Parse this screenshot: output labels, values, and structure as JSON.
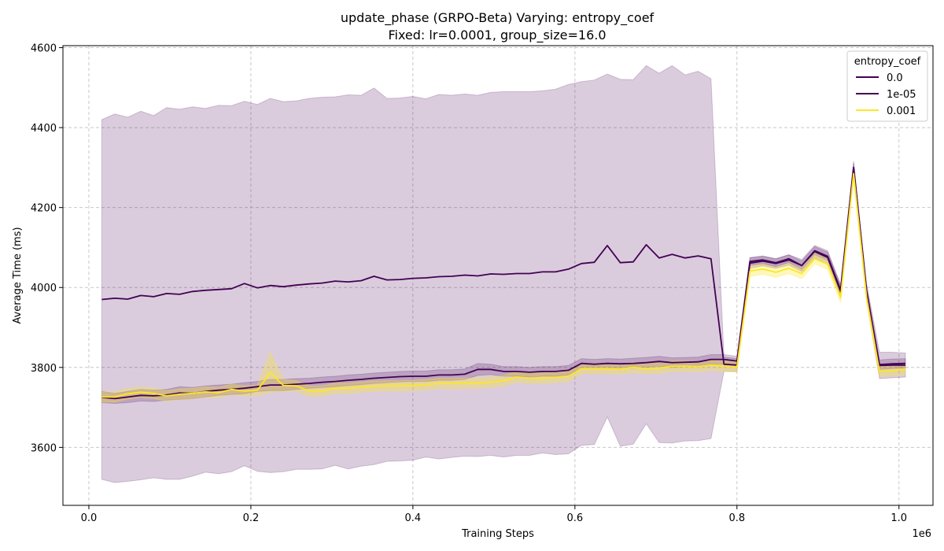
{
  "chart_data": {
    "type": "line",
    "title_line1": "update_phase (GRPO-Beta) Varying: entropy_coef",
    "title_line2": "Fixed: lr=0.0001, group_size=16.0",
    "xlabel": "Training Steps",
    "ylabel": "Average Time (ms)",
    "x_offset_label": "1e6",
    "xlim": [
      -0.032,
      1.042
    ],
    "ylim": [
      3455,
      4605
    ],
    "xticks": [
      0.0,
      0.2,
      0.4,
      0.6,
      0.8,
      1.0
    ],
    "xtick_labels": [
      "0.0",
      "0.2",
      "0.4",
      "0.6",
      "0.8",
      "1.0"
    ],
    "yticks": [
      3600,
      3800,
      4000,
      4200,
      4400,
      4600
    ],
    "ytick_labels": [
      "3600",
      "3800",
      "4000",
      "4200",
      "4400",
      "4600"
    ],
    "grid": true,
    "legend": {
      "title": "entropy_coef",
      "position": "top-right"
    },
    "series": [
      {
        "name": "0.0",
        "color": "#440154",
        "fill_opacity": 0.2,
        "x": [
          0.016,
          0.032,
          0.048,
          0.064,
          0.08,
          0.096,
          0.112,
          0.128,
          0.144,
          0.16,
          0.176,
          0.192,
          0.208,
          0.224,
          0.24,
          0.256,
          0.272,
          0.288,
          0.304,
          0.32,
          0.336,
          0.352,
          0.368,
          0.384,
          0.4,
          0.416,
          0.432,
          0.448,
          0.464,
          0.48,
          0.496,
          0.512,
          0.528,
          0.544,
          0.56,
          0.576,
          0.592,
          0.608,
          0.624,
          0.64,
          0.656,
          0.672,
          0.688,
          0.704,
          0.72,
          0.736,
          0.752,
          0.768,
          0.784,
          0.8,
          0.816,
          0.832,
          0.848,
          0.864,
          0.88,
          0.896,
          0.912,
          0.928,
          0.944,
          0.96,
          0.976,
          0.992,
          1.008
        ],
        "y": [
          3970,
          3973,
          3971,
          3980,
          3977,
          3985,
          3983,
          3990,
          3993,
          3995,
          3997,
          4010,
          3999,
          4005,
          4002,
          4006,
          4009,
          4011,
          4016,
          4014,
          4017,
          4028,
          4019,
          4020,
          4023,
          4024,
          4027,
          4028,
          4031,
          4029,
          4034,
          4033,
          4035,
          4035,
          4039,
          4039,
          4046,
          4060,
          4063,
          4105,
          4062,
          4064,
          4107,
          4074,
          4083,
          4074,
          4079,
          4072,
          3808,
          3806,
          4061,
          4066,
          4060,
          4069,
          4055,
          4090,
          4075,
          3990,
          4300,
          3990,
          3805,
          3806,
          3806
        ],
        "lower": [
          3520,
          3512,
          3515,
          3519,
          3524,
          3520,
          3520,
          3528,
          3538,
          3534,
          3539,
          3554,
          3540,
          3537,
          3539,
          3545,
          3545,
          3546,
          3555,
          3546,
          3553,
          3557,
          3565,
          3566,
          3568,
          3576,
          3571,
          3575,
          3578,
          3577,
          3580,
          3576,
          3580,
          3580,
          3586,
          3582,
          3584,
          3605,
          3607,
          3676,
          3603,
          3608,
          3659,
          3612,
          3611,
          3616,
          3617,
          3622,
          3790,
          3790,
          4048,
          4054,
          4048,
          4056,
          4040,
          4075,
          4058,
          3973,
          4284,
          3970,
          3772,
          3774,
          3776
        ],
        "upper": [
          4420,
          4434,
          4426,
          4441,
          4430,
          4450,
          4446,
          4452,
          4448,
          4456,
          4455,
          4466,
          4458,
          4473,
          4465,
          4467,
          4473,
          4476,
          4477,
          4482,
          4481,
          4499,
          4473,
          4474,
          4478,
          4472,
          4483,
          4481,
          4484,
          4481,
          4488,
          4490,
          4490,
          4490,
          4492,
          4496,
          4508,
          4515,
          4519,
          4534,
          4521,
          4520,
          4555,
          4536,
          4555,
          4532,
          4541,
          4522,
          3826,
          3822,
          4074,
          4078,
          4072,
          4082,
          4070,
          4105,
          4092,
          4007,
          4316,
          4010,
          3838,
          3838,
          3836
        ]
      },
      {
        "name": "1e-05",
        "color": "#440154",
        "fill_opacity": 0.2,
        "x": [
          0.016,
          0.032,
          0.048,
          0.064,
          0.08,
          0.096,
          0.112,
          0.128,
          0.144,
          0.16,
          0.176,
          0.192,
          0.208,
          0.224,
          0.24,
          0.256,
          0.272,
          0.288,
          0.304,
          0.32,
          0.336,
          0.352,
          0.368,
          0.384,
          0.4,
          0.416,
          0.432,
          0.448,
          0.464,
          0.48,
          0.496,
          0.512,
          0.528,
          0.544,
          0.56,
          0.576,
          0.592,
          0.608,
          0.624,
          0.64,
          0.656,
          0.672,
          0.688,
          0.704,
          0.72,
          0.736,
          0.752,
          0.768,
          0.784,
          0.8,
          0.816,
          0.832,
          0.848,
          0.864,
          0.88,
          0.896,
          0.912,
          0.928,
          0.944,
          0.96,
          0.976,
          0.992,
          1.008
        ],
        "y": [
          3725,
          3722,
          3726,
          3730,
          3729,
          3731,
          3736,
          3735,
          3740,
          3743,
          3745,
          3748,
          3752,
          3756,
          3756,
          3758,
          3760,
          3763,
          3765,
          3768,
          3770,
          3773,
          3775,
          3777,
          3778,
          3778,
          3781,
          3781,
          3783,
          3795,
          3795,
          3790,
          3790,
          3788,
          3790,
          3790,
          3793,
          3810,
          3808,
          3810,
          3809,
          3810,
          3812,
          3815,
          3812,
          3813,
          3814,
          3820,
          3820,
          3816,
          4065,
          4069,
          4062,
          4072,
          4055,
          4092,
          4078,
          3994,
          4300,
          3990,
          3807,
          3809,
          3810
        ],
        "lower": [
          3712,
          3710,
          3712,
          3716,
          3715,
          3718,
          3720,
          3722,
          3726,
          3730,
          3732,
          3734,
          3740,
          3742,
          3742,
          3745,
          3748,
          3750,
          3752,
          3755,
          3757,
          3760,
          3762,
          3764,
          3765,
          3765,
          3768,
          3768,
          3770,
          3780,
          3782,
          3778,
          3778,
          3776,
          3778,
          3778,
          3781,
          3798,
          3797,
          3798,
          3797,
          3798,
          3800,
          3803,
          3800,
          3802,
          3803,
          3808,
          3808,
          3804,
          4055,
          4059,
          4052,
          4062,
          4045,
          4082,
          4068,
          3982,
          4288,
          3978,
          3795,
          3797,
          3799
        ],
        "upper": [
          3740,
          3735,
          3740,
          3745,
          3743,
          3745,
          3752,
          3750,
          3754,
          3756,
          3758,
          3762,
          3765,
          3770,
          3770,
          3772,
          3773,
          3776,
          3778,
          3781,
          3783,
          3786,
          3788,
          3790,
          3791,
          3791,
          3794,
          3794,
          3796,
          3810,
          3808,
          3802,
          3802,
          3800,
          3802,
          3802,
          3805,
          3822,
          3820,
          3822,
          3821,
          3823,
          3825,
          3828,
          3824,
          3825,
          3826,
          3832,
          3832,
          3828,
          4075,
          4079,
          4072,
          4082,
          4066,
          4102,
          4088,
          4006,
          4312,
          4002,
          3819,
          3821,
          3822
        ]
      },
      {
        "name": "0.001",
        "color": "#fde725",
        "fill_opacity": 0.3,
        "x": [
          0.016,
          0.032,
          0.048,
          0.064,
          0.08,
          0.096,
          0.112,
          0.128,
          0.144,
          0.16,
          0.176,
          0.192,
          0.208,
          0.224,
          0.24,
          0.256,
          0.272,
          0.288,
          0.304,
          0.32,
          0.336,
          0.352,
          0.368,
          0.384,
          0.4,
          0.416,
          0.432,
          0.448,
          0.464,
          0.48,
          0.496,
          0.512,
          0.528,
          0.544,
          0.56,
          0.576,
          0.592,
          0.608,
          0.624,
          0.64,
          0.656,
          0.672,
          0.688,
          0.704,
          0.72,
          0.736,
          0.752,
          0.768,
          0.784,
          0.8,
          0.816,
          0.832,
          0.848,
          0.864,
          0.88,
          0.896,
          0.912,
          0.928,
          0.944,
          0.96,
          0.976,
          0.992,
          1.008
        ],
        "y": [
          3726,
          3726,
          3734,
          3738,
          3735,
          3729,
          3733,
          3735,
          3739,
          3737,
          3745,
          3741,
          3743,
          3787,
          3755,
          3754,
          3741,
          3741,
          3748,
          3748,
          3751,
          3753,
          3754,
          3754,
          3755,
          3757,
          3760,
          3760,
          3761,
          3761,
          3763,
          3767,
          3776,
          3773,
          3773,
          3775,
          3778,
          3797,
          3797,
          3797,
          3796,
          3800,
          3797,
          3798,
          3803,
          3803,
          3802,
          3806,
          3803,
          3801,
          4041,
          4046,
          4038,
          4048,
          4035,
          4072,
          4058,
          3975,
          4285,
          3975,
          3790,
          3792,
          3795
        ],
        "lower": [
          3713,
          3713,
          3721,
          3725,
          3722,
          3716,
          3720,
          3722,
          3726,
          3724,
          3732,
          3728,
          3730,
          3738,
          3740,
          3741,
          3728,
          3728,
          3735,
          3735,
          3738,
          3740,
          3741,
          3741,
          3742,
          3744,
          3747,
          3747,
          3748,
          3748,
          3750,
          3754,
          3763,
          3760,
          3760,
          3762,
          3765,
          3784,
          3784,
          3784,
          3783,
          3787,
          3784,
          3785,
          3790,
          3790,
          3789,
          3793,
          3790,
          3788,
          4028,
          4033,
          4025,
          4035,
          4022,
          4059,
          4045,
          3962,
          4272,
          3962,
          3777,
          3779,
          3782
        ],
        "upper": [
          3739,
          3739,
          3747,
          3751,
          3748,
          3742,
          3746,
          3748,
          3752,
          3750,
          3758,
          3754,
          3756,
          3838,
          3770,
          3767,
          3754,
          3754,
          3761,
          3761,
          3764,
          3766,
          3767,
          3767,
          3768,
          3770,
          3773,
          3773,
          3774,
          3774,
          3776,
          3780,
          3789,
          3786,
          3786,
          3788,
          3791,
          3810,
          3810,
          3810,
          3809,
          3813,
          3810,
          3811,
          3816,
          3816,
          3815,
          3819,
          3816,
          3814,
          4054,
          4059,
          4051,
          4061,
          4048,
          4085,
          4071,
          3988,
          4298,
          3988,
          3803,
          3805,
          3808
        ]
      }
    ]
  }
}
